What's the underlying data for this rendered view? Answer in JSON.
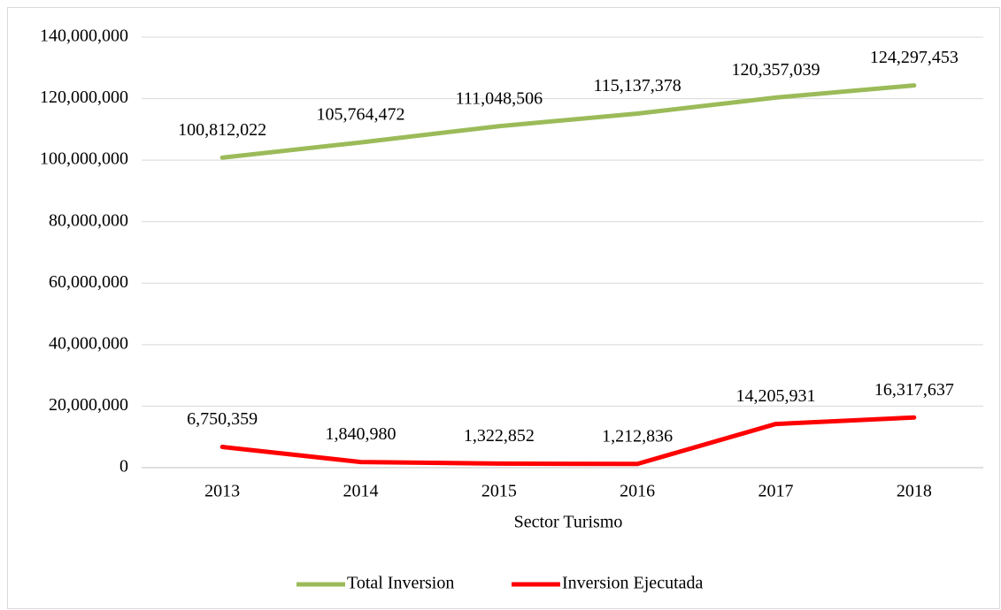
{
  "chart_data": {
    "type": "line",
    "x_label": "Sector Turismo",
    "categories": [
      "2013",
      "2014",
      "2015",
      "2016",
      "2017",
      "2018"
    ],
    "series": [
      {
        "name": "Total Inversion",
        "color": "#9bbb59",
        "values": [
          100812022,
          105764472,
          111048506,
          115137378,
          120357039,
          124297453
        ],
        "value_labels": [
          "100,812,022",
          "105,764,472",
          "111,048,506",
          "115,137,378",
          "120,357,039",
          "124,297,453"
        ]
      },
      {
        "name": "Inversion Ejecutada",
        "color": "#ff0000",
        "values": [
          6750359,
          1840980,
          1322852,
          1212836,
          14205931,
          16317637
        ],
        "value_labels": [
          "6,750,359",
          "1,840,980",
          "1,322,852",
          "1,212,836",
          "14,205,931",
          "16,317,637"
        ]
      }
    ],
    "ylim": [
      0,
      140000000
    ],
    "yticks": [
      0,
      {
        "value": 20000000,
        "label": "20,000,000"
      },
      {
        "value": 40000000,
        "label": "40,000,000"
      },
      {
        "value": 60000000,
        "label": "60,000,000"
      },
      {
        "value": 80000000,
        "label": "80,000,000"
      },
      {
        "value": 100000000,
        "label": "100,000,000"
      },
      {
        "value": 120000000,
        "label": "120,000,000"
      },
      {
        "value": 140000000,
        "label": "140,000,000"
      }
    ],
    "grid": true,
    "legend": "bottom"
  }
}
